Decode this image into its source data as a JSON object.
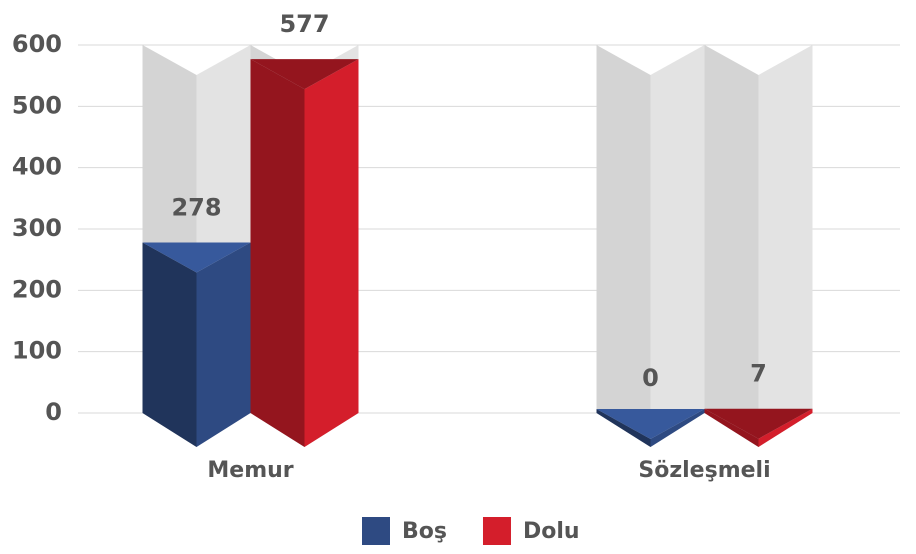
{
  "chart_data": {
    "type": "bar",
    "categories": [
      "Memur",
      "Sözleşmeli"
    ],
    "series": [
      {
        "name": "Boş",
        "color": "#2e4a82",
        "values": [
          278,
          0
        ]
      },
      {
        "name": "Dolu",
        "color": "#d41e2b",
        "values": [
          577,
          7
        ]
      }
    ],
    "ylim": [
      0,
      600
    ],
    "yticks": [
      0,
      100,
      200,
      300,
      400,
      500,
      600
    ],
    "grid": true,
    "legend": "bottom"
  }
}
